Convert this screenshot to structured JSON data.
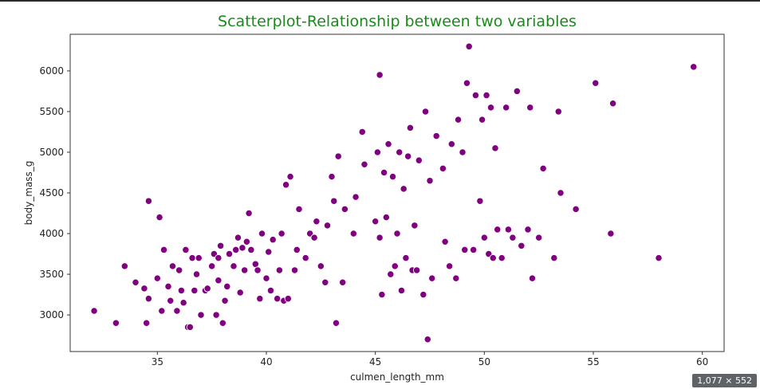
{
  "overlay": {
    "image_size_badge": "1,077 × 552"
  },
  "colors": {
    "title": "#1a8a1a",
    "point_fill": "#800080",
    "point_stroke": "#ffffff",
    "axis": "#333333"
  },
  "chart_data": {
    "type": "scatter",
    "title": "Scatterplot-Relationship between two variables",
    "xlabel": "culmen_length_mm",
    "ylabel": "body_mass_g",
    "xlim": [
      31,
      61
    ],
    "ylim": [
      2550,
      6450
    ],
    "xticks": [
      35,
      40,
      45,
      50,
      55,
      60
    ],
    "yticks": [
      3000,
      3500,
      4000,
      4500,
      5000,
      5500,
      6000
    ],
    "grid": false,
    "legend": "none",
    "points": [
      [
        32.1,
        3050
      ],
      [
        33.1,
        2900
      ],
      [
        33.5,
        3600
      ],
      [
        34.0,
        3400
      ],
      [
        34.4,
        3325
      ],
      [
        34.5,
        2900
      ],
      [
        34.6,
        3200
      ],
      [
        34.6,
        4400
      ],
      [
        35.0,
        3450
      ],
      [
        35.1,
        4200
      ],
      [
        35.2,
        3050
      ],
      [
        35.3,
        3800
      ],
      [
        35.5,
        3350
      ],
      [
        35.6,
        3175
      ],
      [
        35.7,
        3600
      ],
      [
        35.9,
        3050
      ],
      [
        36.0,
        3550
      ],
      [
        36.1,
        3300
      ],
      [
        36.2,
        3150
      ],
      [
        36.3,
        3800
      ],
      [
        36.4,
        2850
      ],
      [
        36.5,
        2850
      ],
      [
        36.6,
        3700
      ],
      [
        36.7,
        3300
      ],
      [
        36.8,
        3500
      ],
      [
        36.9,
        3700
      ],
      [
        37.0,
        3000
      ],
      [
        37.2,
        3300
      ],
      [
        37.3,
        3325
      ],
      [
        37.5,
        3600
      ],
      [
        37.6,
        3750
      ],
      [
        37.7,
        3000
      ],
      [
        37.8,
        3700
      ],
      [
        37.8,
        3425
      ],
      [
        37.9,
        3850
      ],
      [
        38.0,
        2900
      ],
      [
        38.1,
        3175
      ],
      [
        38.2,
        3350
      ],
      [
        38.3,
        3750
      ],
      [
        38.5,
        3600
      ],
      [
        38.6,
        3800
      ],
      [
        38.7,
        3950
      ],
      [
        38.8,
        3275
      ],
      [
        38.9,
        3825
      ],
      [
        39.0,
        3550
      ],
      [
        39.1,
        3900
      ],
      [
        39.2,
        4250
      ],
      [
        39.3,
        3800
      ],
      [
        39.5,
        3625
      ],
      [
        39.6,
        3550
      ],
      [
        39.7,
        3200
      ],
      [
        39.8,
        4000
      ],
      [
        40.0,
        3450
      ],
      [
        40.1,
        3775
      ],
      [
        40.2,
        3300
      ],
      [
        40.3,
        3925
      ],
      [
        40.5,
        3200
      ],
      [
        40.6,
        3550
      ],
      [
        40.7,
        4000
      ],
      [
        40.8,
        3175
      ],
      [
        40.9,
        4600
      ],
      [
        41.0,
        3200
      ],
      [
        41.1,
        4700
      ],
      [
        41.3,
        3550
      ],
      [
        41.4,
        3800
      ],
      [
        41.5,
        4300
      ],
      [
        41.8,
        3700
      ],
      [
        42.0,
        4000
      ],
      [
        42.2,
        3950
      ],
      [
        42.3,
        4150
      ],
      [
        42.5,
        3600
      ],
      [
        42.7,
        3400
      ],
      [
        42.8,
        4100
      ],
      [
        43.0,
        4700
      ],
      [
        43.1,
        4400
      ],
      [
        43.2,
        2900
      ],
      [
        43.3,
        4950
      ],
      [
        43.5,
        3400
      ],
      [
        43.6,
        4300
      ],
      [
        44.0,
        4000
      ],
      [
        44.1,
        4450
      ],
      [
        44.4,
        5250
      ],
      [
        44.5,
        4850
      ],
      [
        45.0,
        4150
      ],
      [
        45.1,
        5000
      ],
      [
        45.2,
        3950
      ],
      [
        45.2,
        5950
      ],
      [
        45.3,
        3250
      ],
      [
        45.4,
        4750
      ],
      [
        45.5,
        4200
      ],
      [
        45.6,
        5100
      ],
      [
        45.7,
        3500
      ],
      [
        45.8,
        4700
      ],
      [
        45.9,
        3600
      ],
      [
        46.0,
        4000
      ],
      [
        46.1,
        5000
      ],
      [
        46.2,
        3300
      ],
      [
        46.3,
        4550
      ],
      [
        46.4,
        3700
      ],
      [
        46.5,
        4950
      ],
      [
        46.6,
        5300
      ],
      [
        46.7,
        3550
      ],
      [
        46.8,
        4100
      ],
      [
        46.9,
        3550
      ],
      [
        47.0,
        4900
      ],
      [
        47.2,
        3250
      ],
      [
        47.3,
        5500
      ],
      [
        47.4,
        2700
      ],
      [
        47.5,
        4650
      ],
      [
        47.6,
        3450
      ],
      [
        47.8,
        5200
      ],
      [
        48.1,
        4800
      ],
      [
        48.2,
        3900
      ],
      [
        48.4,
        3600
      ],
      [
        48.5,
        5100
      ],
      [
        48.7,
        3450
      ],
      [
        48.8,
        5400
      ],
      [
        49.0,
        5000
      ],
      [
        49.1,
        3800
      ],
      [
        49.2,
        5850
      ],
      [
        49.3,
        6300
      ],
      [
        49.5,
        3800
      ],
      [
        49.6,
        5700
      ],
      [
        49.8,
        4400
      ],
      [
        49.9,
        5400
      ],
      [
        50.0,
        3950
      ],
      [
        50.1,
        5700
      ],
      [
        50.2,
        3750
      ],
      [
        50.3,
        5550
      ],
      [
        50.4,
        3700
      ],
      [
        50.5,
        5050
      ],
      [
        50.6,
        4050
      ],
      [
        50.8,
        3700
      ],
      [
        51.0,
        5550
      ],
      [
        51.1,
        4050
      ],
      [
        51.3,
        3950
      ],
      [
        51.5,
        5750
      ],
      [
        51.7,
        3850
      ],
      [
        52.0,
        4050
      ],
      [
        52.1,
        5550
      ],
      [
        52.2,
        3450
      ],
      [
        52.5,
        3950
      ],
      [
        52.7,
        4800
      ],
      [
        53.2,
        3700
      ],
      [
        53.4,
        5500
      ],
      [
        53.5,
        4500
      ],
      [
        54.2,
        4300
      ],
      [
        55.1,
        5850
      ],
      [
        55.8,
        4000
      ],
      [
        55.9,
        5600
      ],
      [
        58.0,
        3700
      ],
      [
        59.6,
        6050
      ]
    ]
  }
}
